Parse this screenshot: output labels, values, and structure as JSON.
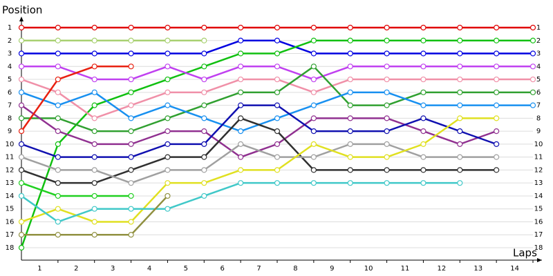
{
  "chart_data": {
    "type": "lapchart",
    "ylabel": "Position",
    "xlabel": "Laps",
    "x": [
      0,
      1,
      2,
      3,
      4,
      5,
      6,
      7,
      8,
      9,
      10,
      11,
      12,
      13,
      14
    ],
    "xlim": [
      0,
      14
    ],
    "xticks": [
      1,
      2,
      3,
      4,
      5,
      6,
      7,
      8,
      9,
      10,
      11,
      12,
      13,
      14
    ],
    "ylim": [
      1,
      18
    ],
    "yticks": [
      1,
      2,
      3,
      4,
      5,
      6,
      7,
      8,
      9,
      10,
      11,
      12,
      13,
      14,
      15,
      16,
      17,
      18
    ],
    "grid": true,
    "series": [
      {
        "color": "#e00000",
        "values": [
          1,
          1,
          1,
          1,
          1,
          1,
          1,
          1,
          1,
          1,
          1,
          1,
          1,
          1,
          1
        ]
      },
      {
        "color": "#a8d070",
        "values": [
          2,
          2,
          2,
          2,
          2,
          2,
          null,
          null,
          null,
          null,
          null,
          null,
          null,
          null,
          null
        ]
      },
      {
        "color": "#0000e0",
        "values": [
          3,
          3,
          3,
          3,
          3,
          3,
          2,
          2,
          3,
          3,
          3,
          3,
          3,
          3,
          3
        ]
      },
      {
        "color": "#10c010",
        "values": [
          18,
          10,
          7,
          6,
          5,
          4,
          3,
          3,
          2,
          2,
          2,
          2,
          2,
          2,
          2
        ]
      },
      {
        "color": "#c040f0",
        "values": [
          4,
          4,
          5,
          5,
          4,
          5,
          4,
          4,
          5,
          4,
          4,
          4,
          4,
          4,
          4
        ]
      },
      {
        "color": "#f090a8",
        "values": [
          5,
          6,
          8,
          7,
          6,
          6,
          5,
          5,
          6,
          5,
          5,
          5,
          5,
          5,
          5
        ]
      },
      {
        "color": "#30a030",
        "values": [
          8,
          8,
          9,
          9,
          8,
          7,
          6,
          6,
          4,
          7,
          7,
          6,
          6,
          6,
          6
        ]
      },
      {
        "color": "#1890f0",
        "values": [
          6,
          7,
          6,
          8,
          7,
          8,
          9,
          8,
          7,
          6,
          6,
          7,
          7,
          7,
          7
        ]
      },
      {
        "color": "#903090",
        "values": [
          7,
          9,
          10,
          10,
          9,
          9,
          11,
          10,
          8,
          8,
          8,
          9,
          10,
          9,
          null
        ]
      },
      {
        "color": "#1010b0",
        "values": [
          10,
          11,
          11,
          11,
          10,
          10,
          7,
          7,
          9,
          9,
          9,
          8,
          9,
          10,
          null
        ]
      },
      {
        "color": "#303030",
        "values": [
          12,
          13,
          13,
          12,
          11,
          11,
          8,
          9,
          12,
          12,
          12,
          12,
          12,
          12,
          null
        ]
      },
      {
        "color": "#a0a0a0",
        "values": [
          11,
          12,
          12,
          13,
          12,
          12,
          10,
          11,
          11,
          10,
          10,
          11,
          11,
          11,
          null
        ]
      },
      {
        "color": "#e0e020",
        "values": [
          16,
          15,
          16,
          16,
          13,
          13,
          12,
          12,
          10,
          11,
          11,
          10,
          8,
          8,
          null
        ]
      },
      {
        "color": "#40c8c8",
        "values": [
          14,
          16,
          15,
          15,
          15,
          14,
          13,
          13,
          13,
          13,
          13,
          13,
          13,
          null,
          null
        ]
      },
      {
        "color": "#20d020",
        "values": [
          13,
          14,
          14,
          14,
          null,
          null,
          null,
          null,
          null,
          null,
          null,
          null,
          null,
          null,
          null
        ]
      },
      {
        "color": "#909040",
        "values": [
          17,
          17,
          17,
          17,
          14,
          null,
          null,
          null,
          null,
          null,
          null,
          null,
          null,
          null,
          null
        ]
      },
      {
        "color": "#e82010",
        "values": [
          9,
          5,
          4,
          4,
          null,
          null,
          null,
          null,
          null,
          null,
          null,
          null,
          null,
          null,
          null
        ]
      }
    ]
  }
}
